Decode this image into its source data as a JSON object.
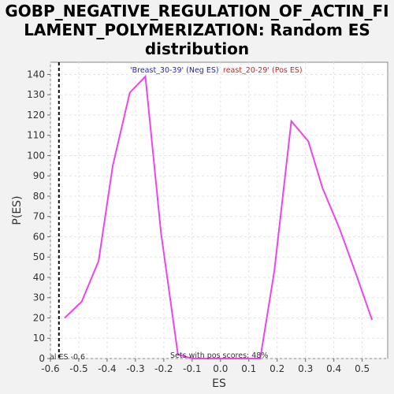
{
  "title_lines": [
    "GOBP_NEGATIVE_REGULATION_OF_ACTIN_FI",
    "LAMENT_POLYMERIZATION: Random ES",
    "distribution"
  ],
  "legend": {
    "neg": "'Breast_30-39' (Neg ES)",
    "pos": "reast_20-29' (Pos ES)",
    "neg_color": "#2222cc",
    "pos_color": "#cc2222"
  },
  "annotations": {
    "actual_es": "al ES -0.6",
    "pos_scores": "Sets with pos scores: 48%"
  },
  "chart_data": {
    "type": "line",
    "title": "GOBP_NEGATIVE_REGULATION_OF_ACTIN_FILAMENT_POLYMERIZATION: Random ES distribution",
    "xlabel": "ES",
    "ylabel": "P(ES)",
    "xlim": [
      -0.6,
      0.59
    ],
    "ylim": [
      0,
      146
    ],
    "xticks": [
      -0.6,
      -0.5,
      -0.4,
      -0.3,
      -0.2,
      -0.1,
      0.0,
      0.1,
      0.2,
      0.3,
      0.4,
      0.5
    ],
    "xtick_labels": [
      "-0.6",
      "-0.5",
      "-0.4",
      "-0.3",
      "-0.2",
      "-0.1",
      "0.0",
      "0.1",
      "0.2",
      "0.3",
      "0.4",
      "0.5"
    ],
    "yticks": [
      0,
      10,
      20,
      30,
      40,
      50,
      60,
      70,
      80,
      90,
      100,
      110,
      120,
      130,
      140
    ],
    "grid": true,
    "line_color": "#ee44ee",
    "marker_line": {
      "x": -0.57,
      "style": "dashed",
      "color": "#000000"
    },
    "series": [
      {
        "x": [
          -0.55,
          -0.49,
          -0.43,
          -0.38,
          -0.32,
          -0.265,
          -0.21,
          -0.15,
          -0.1,
          -0.04,
          0.02,
          0.08,
          0.14,
          0.19,
          0.25,
          0.31,
          0.36,
          0.42,
          0.48,
          0.535
        ],
        "y": [
          20,
          28,
          48,
          95,
          131,
          139,
          62,
          2,
          0,
          0,
          0,
          0,
          0,
          43,
          117,
          107,
          84,
          64,
          41,
          19
        ]
      }
    ]
  }
}
